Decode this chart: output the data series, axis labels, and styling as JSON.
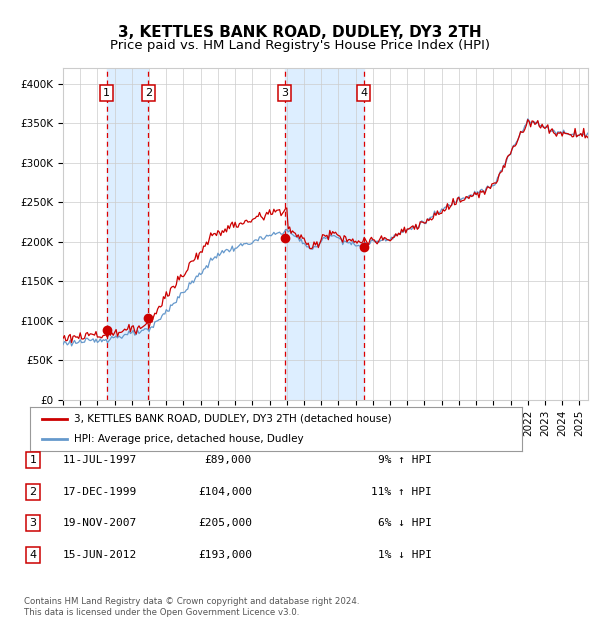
{
  "title": "3, KETTLES BANK ROAD, DUDLEY, DY3 2TH",
  "subtitle": "Price paid vs. HM Land Registry's House Price Index (HPI)",
  "ylim": [
    0,
    420000
  ],
  "yticks": [
    0,
    50000,
    100000,
    150000,
    200000,
    250000,
    300000,
    350000,
    400000
  ],
  "ytick_labels": [
    "£0",
    "£50K",
    "£100K",
    "£150K",
    "£200K",
    "£250K",
    "£300K",
    "£350K",
    "£400K"
  ],
  "xlim_start": 1995.0,
  "xlim_end": 2025.5,
  "sale_dates": [
    1997.53,
    1999.96,
    2007.89,
    2012.46
  ],
  "sale_prices": [
    89000,
    104000,
    205000,
    193000
  ],
  "sale_labels": [
    "1",
    "2",
    "3",
    "4"
  ],
  "vline_color": "#dd0000",
  "sale_dot_color": "#cc0000",
  "hpi_line_color": "#6699cc",
  "price_line_color": "#cc0000",
  "shade_color": "#ddeeff",
  "grid_color": "#cccccc",
  "background_color": "#ffffff",
  "legend_entries": [
    "3, KETTLES BANK ROAD, DUDLEY, DY3 2TH (detached house)",
    "HPI: Average price, detached house, Dudley"
  ],
  "table_rows": [
    [
      "1",
      "11-JUL-1997",
      "£89,000",
      "9% ↑ HPI"
    ],
    [
      "2",
      "17-DEC-1999",
      "£104,000",
      "11% ↑ HPI"
    ],
    [
      "3",
      "19-NOV-2007",
      "£205,000",
      "6% ↓ HPI"
    ],
    [
      "4",
      "15-JUN-2012",
      "£193,000",
      "1% ↓ HPI"
    ]
  ],
  "footnote": "Contains HM Land Registry data © Crown copyright and database right 2024.\nThis data is licensed under the Open Government Licence v3.0.",
  "title_fontsize": 11,
  "subtitle_fontsize": 9.5,
  "tick_fontsize": 7.5,
  "label_fontsize": 8
}
